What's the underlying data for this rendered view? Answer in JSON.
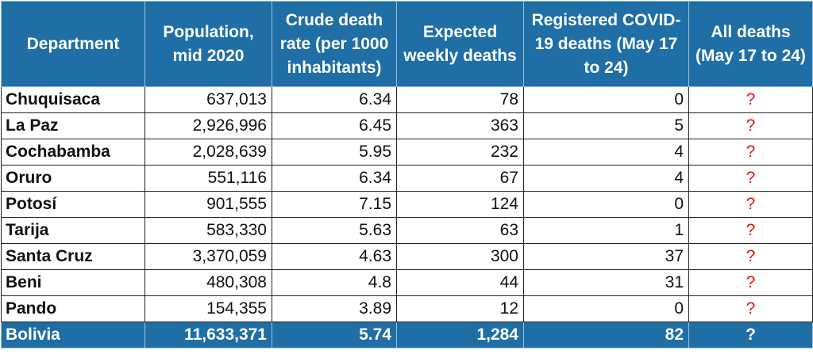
{
  "table": {
    "headers": [
      "Department",
      "Population, mid 2020",
      "Crude death rate (per 1000 inhabitants)",
      "Expected weekly deaths",
      "Registered COVID-19 deaths (May 17 to 24)",
      "All deaths (May 17 to 24)"
    ],
    "rows": [
      {
        "department": "Chuquisaca",
        "population": "637,013",
        "crude_rate": "6.34",
        "expected": "78",
        "covid": "0",
        "all_deaths": "?"
      },
      {
        "department": "La Paz",
        "population": "2,926,996",
        "crude_rate": "6.45",
        "expected": "363",
        "covid": "5",
        "all_deaths": "?"
      },
      {
        "department": "Cochabamba",
        "population": "2,028,639",
        "crude_rate": "5.95",
        "expected": "232",
        "covid": "4",
        "all_deaths": "?"
      },
      {
        "department": "Oruro",
        "population": "551,116",
        "crude_rate": "6.34",
        "expected": "67",
        "covid": "4",
        "all_deaths": "?"
      },
      {
        "department": "Potosí",
        "population": "901,555",
        "crude_rate": "7.15",
        "expected": "124",
        "covid": "0",
        "all_deaths": "?"
      },
      {
        "department": "Tarija",
        "population": "583,330",
        "crude_rate": "5.63",
        "expected": "63",
        "covid": "1",
        "all_deaths": "?"
      },
      {
        "department": "Santa Cruz",
        "population": "3,370,059",
        "crude_rate": "4.63",
        "expected": "300",
        "covid": "37",
        "all_deaths": "?"
      },
      {
        "department": "Beni",
        "population": "480,308",
        "crude_rate": "4.8",
        "expected": "44",
        "covid": "31",
        "all_deaths": "?"
      },
      {
        "department": "Pando",
        "population": "154,355",
        "crude_rate": "3.89",
        "expected": "12",
        "covid": "0",
        "all_deaths": "?"
      }
    ],
    "total": {
      "department": "Bolivia",
      "population": "11,633,371",
      "crude_rate": "5.74",
      "expected": "1,284",
      "covid": "82",
      "all_deaths": "?"
    }
  },
  "colors": {
    "header_bg": "#1f6ea5",
    "header_text": "#ffffff",
    "question_mark": "#e01010"
  }
}
